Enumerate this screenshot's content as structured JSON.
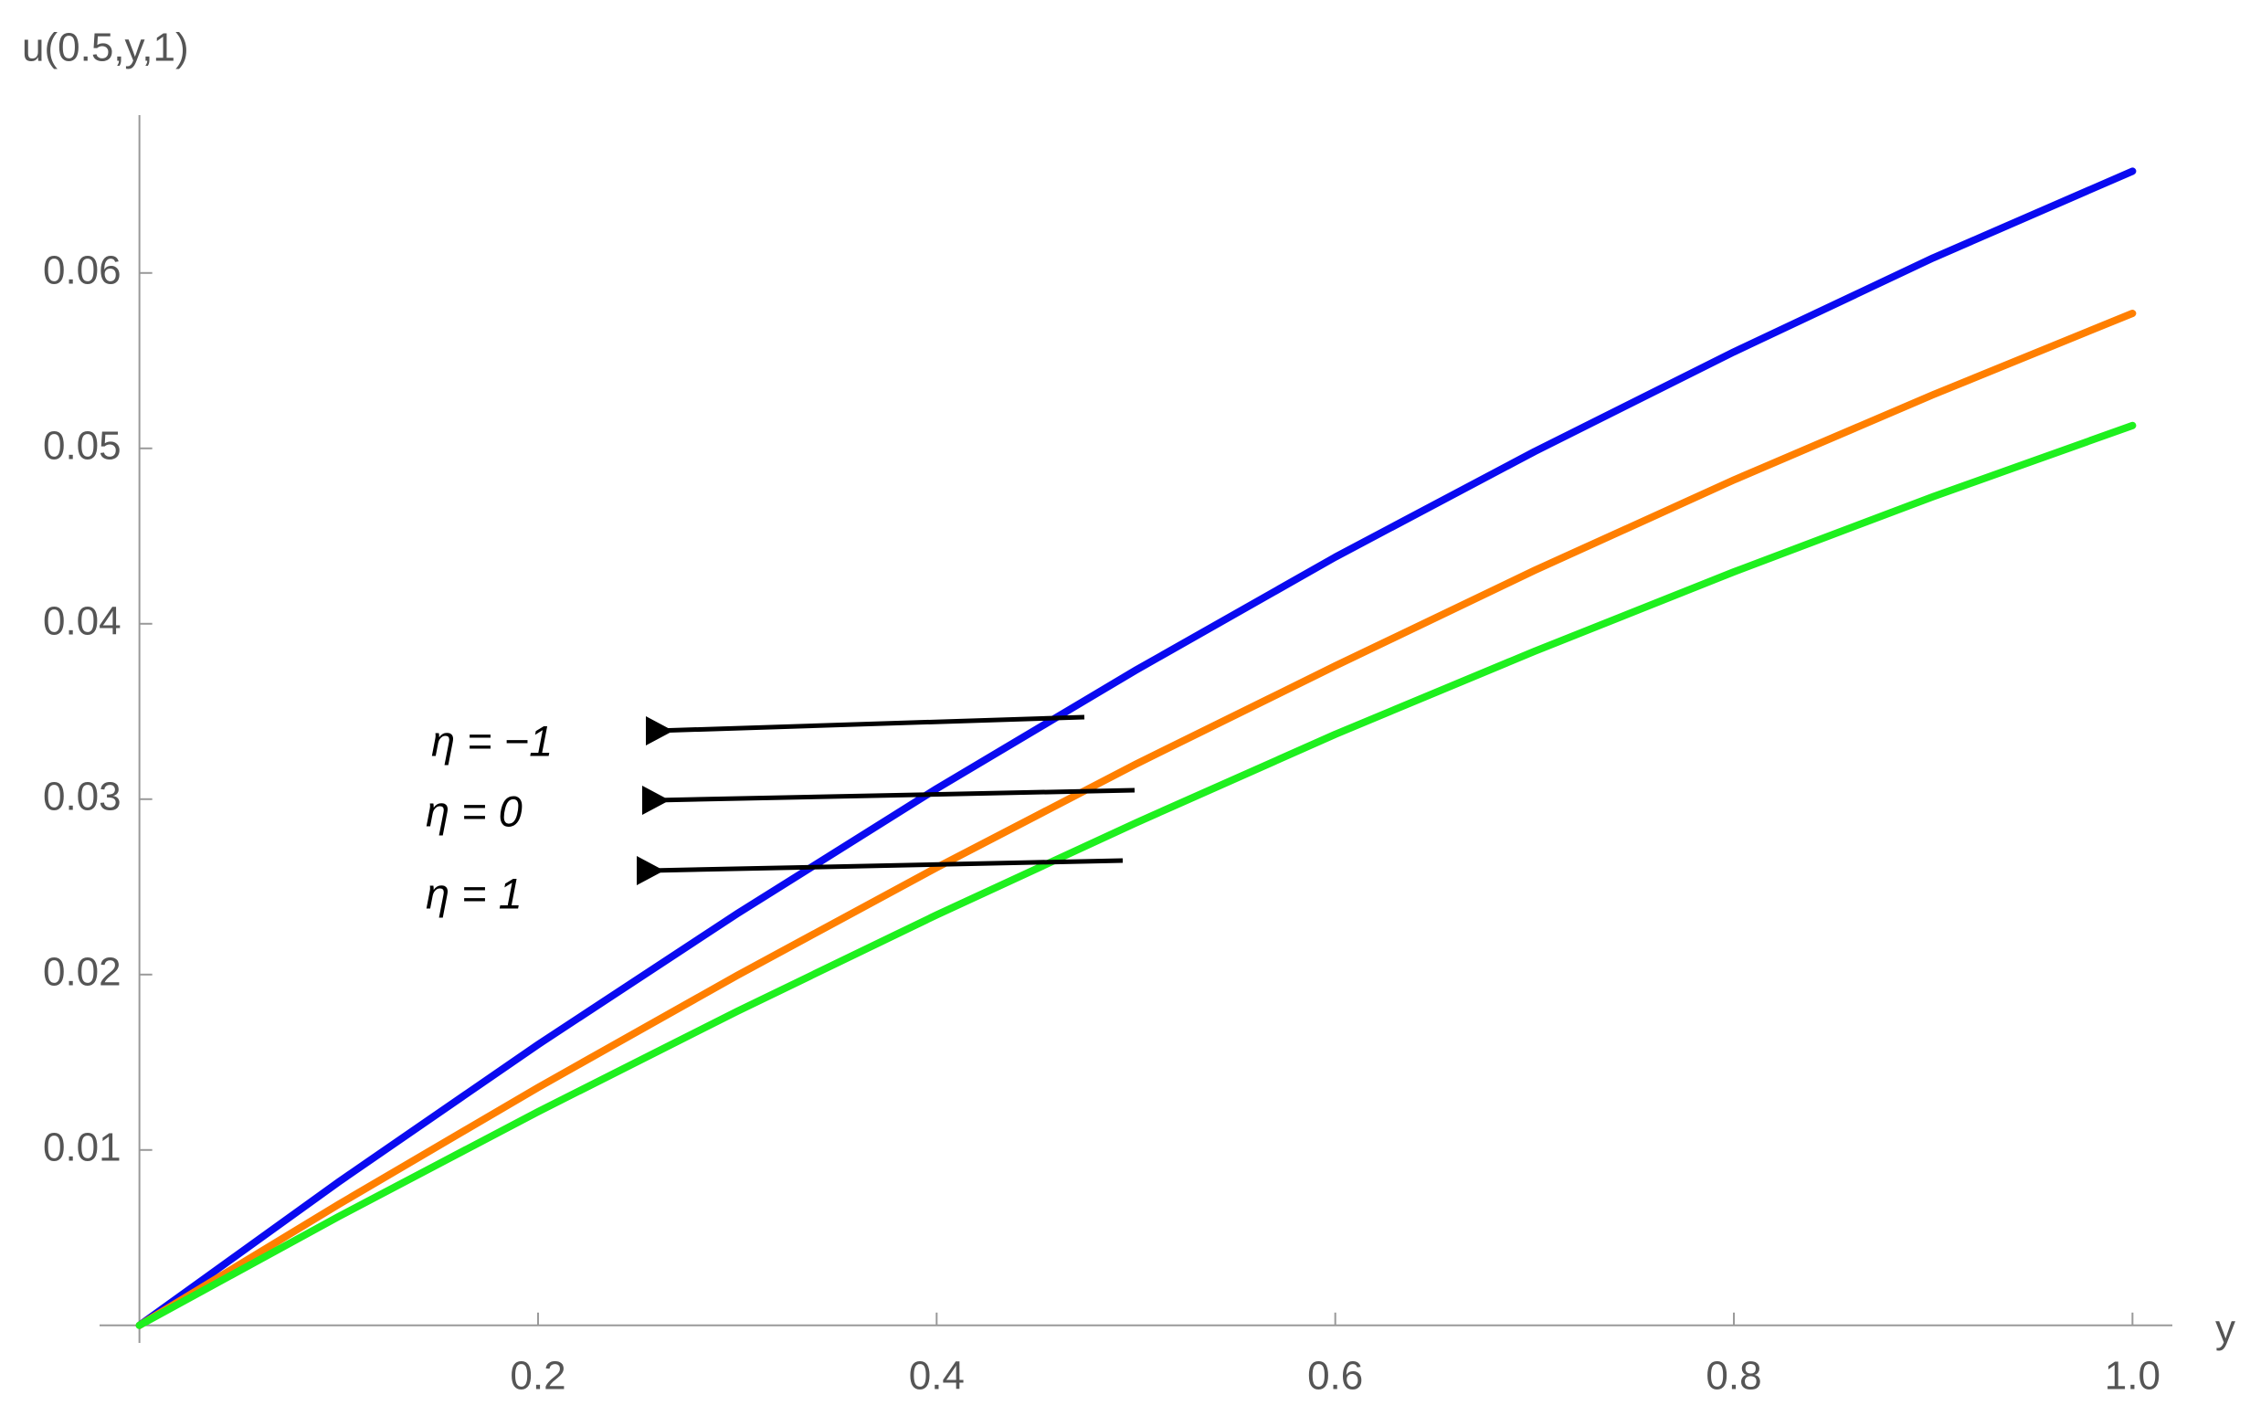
{
  "chart_data": {
    "type": "line",
    "y_label": "u(0.5,y,1)",
    "x_label": "y",
    "x": [
      0,
      0.1,
      0.2,
      0.3,
      0.4,
      0.5,
      0.6,
      0.7,
      0.8,
      0.9,
      1.0
    ],
    "series": [
      {
        "name": "η = −1",
        "color": "#0a0af0",
        "values": [
          0,
          0.00818,
          0.01601,
          0.02348,
          0.0306,
          0.03736,
          0.0438,
          0.04982,
          0.0555,
          0.06086,
          0.0658
        ]
      },
      {
        "name": "η = 0",
        "color": "#ff7f00",
        "values": [
          0,
          0.0069,
          0.01356,
          0.01996,
          0.0261,
          0.032,
          0.0376,
          0.04304,
          0.0482,
          0.05306,
          0.0577
        ]
      },
      {
        "name": "η = 1",
        "color": "#1ef01e",
        "values": [
          0,
          0.00621,
          0.01218,
          0.01791,
          0.0234,
          0.02865,
          0.0337,
          0.03843,
          0.04296,
          0.04725,
          0.0513
        ]
      }
    ],
    "xlim": [
      -0.02,
      1.02
    ],
    "ylim": [
      -0.001,
      0.069
    ],
    "xticks": [
      0.2,
      0.4,
      0.6,
      0.8,
      {
        "value": 1,
        "label": "1.0"
      }
    ],
    "yticks": [
      0.01,
      0.02,
      0.03,
      0.04,
      0.05,
      0.06
    ],
    "grid": false
  }
}
